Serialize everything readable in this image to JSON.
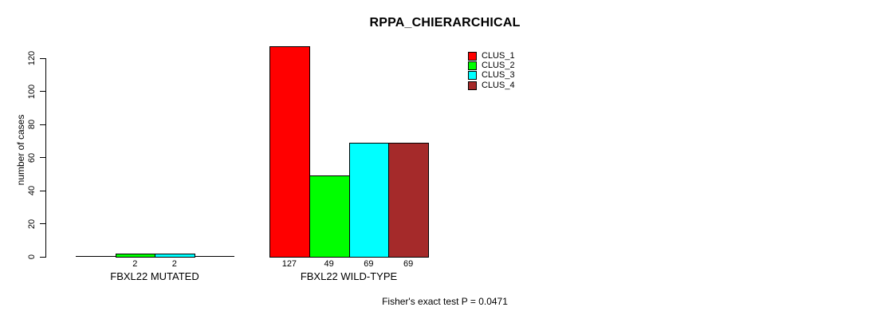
{
  "chart_data": {
    "type": "bar",
    "title": "RPPA_CHIERARCHICAL",
    "ylabel": "number of cases",
    "xlabel": "",
    "ylim": [
      0,
      120
    ],
    "yticks": [
      0,
      20,
      40,
      60,
      80,
      100,
      120
    ],
    "categories": [
      "FBXL22 MUTATED",
      "FBXL22 WILD-TYPE"
    ],
    "series": [
      {
        "name": "CLUS_1",
        "color": "#ff0000",
        "values": [
          0,
          127
        ]
      },
      {
        "name": "CLUS_2",
        "color": "#00ff00",
        "values": [
          2,
          49
        ]
      },
      {
        "name": "CLUS_3",
        "color": "#00ffff",
        "values": [
          2,
          69
        ]
      },
      {
        "name": "CLUS_4",
        "color": "#a52a2a",
        "values": [
          0,
          69
        ]
      }
    ],
    "bar_value_labels": {
      "shown_when": "value > 0"
    },
    "legend": {
      "position": "top-right",
      "entries": [
        "CLUS_1",
        "CLUS_2",
        "CLUS_3",
        "CLUS_4"
      ]
    },
    "grid": false,
    "footnote": "Fisher's exact test P = 0.0471"
  }
}
